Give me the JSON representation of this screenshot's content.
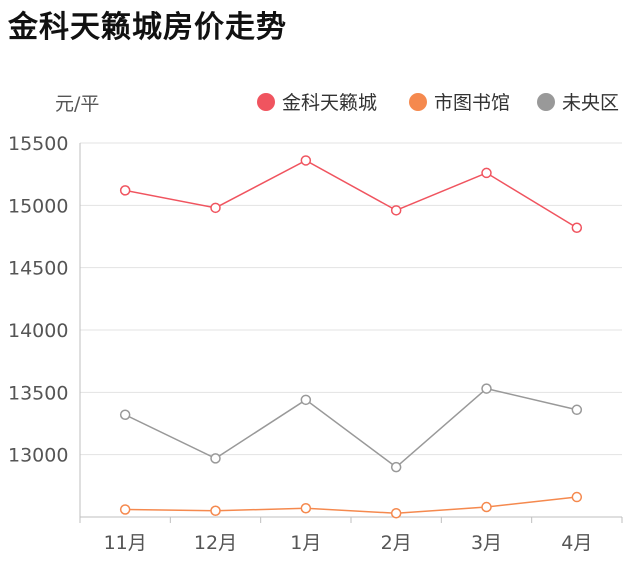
{
  "chart_data": {
    "type": "line",
    "title": "金科天籁城房价走势",
    "ylabel": "元/平",
    "xlabel": "",
    "categories": [
      "11月",
      "12月",
      "1月",
      "2月",
      "3月",
      "4月"
    ],
    "ylim": [
      12500,
      15500
    ],
    "yticks": [
      13000,
      13500,
      14000,
      14500,
      15000,
      15500
    ],
    "grid": true,
    "legend_position": "top-right",
    "series": [
      {
        "name": "金科天籁城",
        "color": "#f0545f",
        "values": [
          15120,
          14980,
          15360,
          14960,
          15260,
          14820
        ]
      },
      {
        "name": "市图书馆",
        "color": "#f5894e",
        "values": [
          12560,
          12550,
          12570,
          12530,
          12580,
          12660
        ]
      },
      {
        "name": "未央区",
        "color": "#999999",
        "values": [
          13320,
          12970,
          13440,
          12900,
          13530,
          13360
        ]
      }
    ]
  }
}
